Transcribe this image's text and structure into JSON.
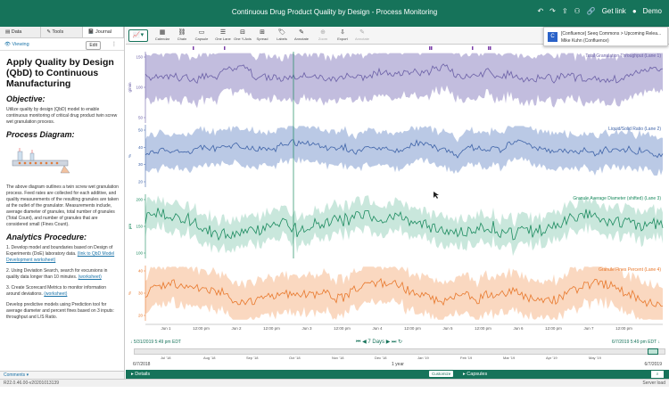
{
  "topbar": {
    "title": "Continuous Drug Product Quality by Design - Process Monitoring",
    "get_link": "Get link",
    "user": "Demo"
  },
  "left_panel": {
    "tabs": [
      "Data",
      "Tools",
      "Journal"
    ],
    "viewing": "Viewing",
    "edit": "Edit",
    "doc": {
      "title": "Apply Quality by Design (QbD) to Continuous Manufacturing",
      "objective_heading": "Objective:",
      "objective_text": "Utilize quality by design (QbD) model to enable continuous monitoring of critical drug product twin screw wet granulation process.",
      "diagram_heading": "Process Diagram:",
      "diagram_text": "The above diagram outlines a twin screw wet granulation process. Feed rates are collected for each additive, and quality measurements of the resulting granules are taken at the outlet of the granulator. Measurements include, average diameter of granules, total number of granules (Total Count), and number of granules that are considered small (Fines Count).",
      "procedure_heading": "Analytics Procedure:",
      "step1": "1. Develop model and boundaries based on Design of Experiments (DoE) laboratory data.",
      "step1_link": "(link to QbD Model Development worksheet)",
      "step2": "2. Using Deviation Search, search for excursions in quality data longer than 10 minutes.",
      "step2_link": "(worksheet)",
      "step3": "3. Create Scorecard Metrics to monitor information around deviations.",
      "step3_link": "(worksheet)",
      "step4": "Develop predictive models using Prediction tool for average diameter and percent fines based on 3 inputs: throughput and L/S Ratio."
    },
    "comments": "Comments"
  },
  "toolbar": {
    "tools": [
      "Calendar",
      "Chain",
      "Capsule",
      "One Lane",
      "One Y-Axis",
      "Spread",
      "Labels",
      "Annotate",
      "Zoom",
      "Export",
      "Annotate"
    ],
    "disabled": [
      false,
      false,
      false,
      false,
      false,
      false,
      false,
      false,
      true,
      false,
      true
    ]
  },
  "notification": {
    "line1": "[Confluence] Seeq Commons > Upcoming Relea...",
    "line2": "Mike Kuhn (Confluence)"
  },
  "colors": {
    "brand": "#16735a",
    "lane1": "#6a5fa6",
    "lane1_band": "#b7b1d8",
    "lane2": "#3e63a8",
    "lane2_band": "#aec0e0",
    "lane3": "#1a8a5e",
    "lane3_band": "#bfe3d6",
    "lane4": "#e8772a",
    "lane4_band": "#f9d1b5"
  },
  "chart_data": {
    "type": "line",
    "x_labels": [
      "Jun 1",
      "12:00 pm",
      "Jun 2",
      "12:00 pm",
      "Jun 3",
      "12:00 pm",
      "Jun 4",
      "12:00 pm",
      "Jun 5",
      "12:00 pm",
      "Jun 6",
      "12:00 pm",
      "Jun 7",
      "12:00 pm"
    ],
    "series": [
      {
        "name": "Total Granulation Throughput",
        "lane": "Lane 1",
        "y_label": "g/min",
        "y_ticks": [
          "150",
          "100",
          "50"
        ],
        "ylim": [
          40,
          160
        ]
      },
      {
        "name": "Liquid/Solid Ratio",
        "lane": "Lane 2",
        "y_label": "%",
        "y_ticks": [
          "50",
          "40",
          "30",
          "20"
        ],
        "ylim": [
          15,
          55
        ]
      },
      {
        "name": "Granule Average Diameter (shifted)",
        "lane": "Lane 3",
        "y_label": "µm",
        "y_ticks": [
          "200",
          "150",
          "100"
        ],
        "ylim": [
          80,
          220
        ]
      },
      {
        "name": "Granule Fines Percent",
        "lane": "Lane 4",
        "y_label": "%",
        "y_ticks": [
          "40",
          "30",
          "20"
        ],
        "ylim": [
          15,
          45
        ]
      }
    ]
  },
  "nav": {
    "start": "5/31/2019 5:49 pm EDT",
    "step": "7 Days",
    "end": "6/7/2019 5:49 pm EDT"
  },
  "overview": {
    "labels": [
      "Jul '18",
      "Aug '18",
      "Sep '18",
      "Oct '18",
      "Nov '18",
      "Dec '18",
      "Jan '19",
      "Feb '19",
      "Mar '19",
      "Apr '19",
      "May '19"
    ],
    "range_start": "6/7/2018",
    "range_mid": "1 year",
    "range_end": "6/7/2019"
  },
  "details": {
    "details_label": "Details",
    "customize": "Customize",
    "capsules": "Capsules"
  },
  "status": {
    "version": "R22.0.46.00-v20201013139",
    "server": "Server load"
  }
}
